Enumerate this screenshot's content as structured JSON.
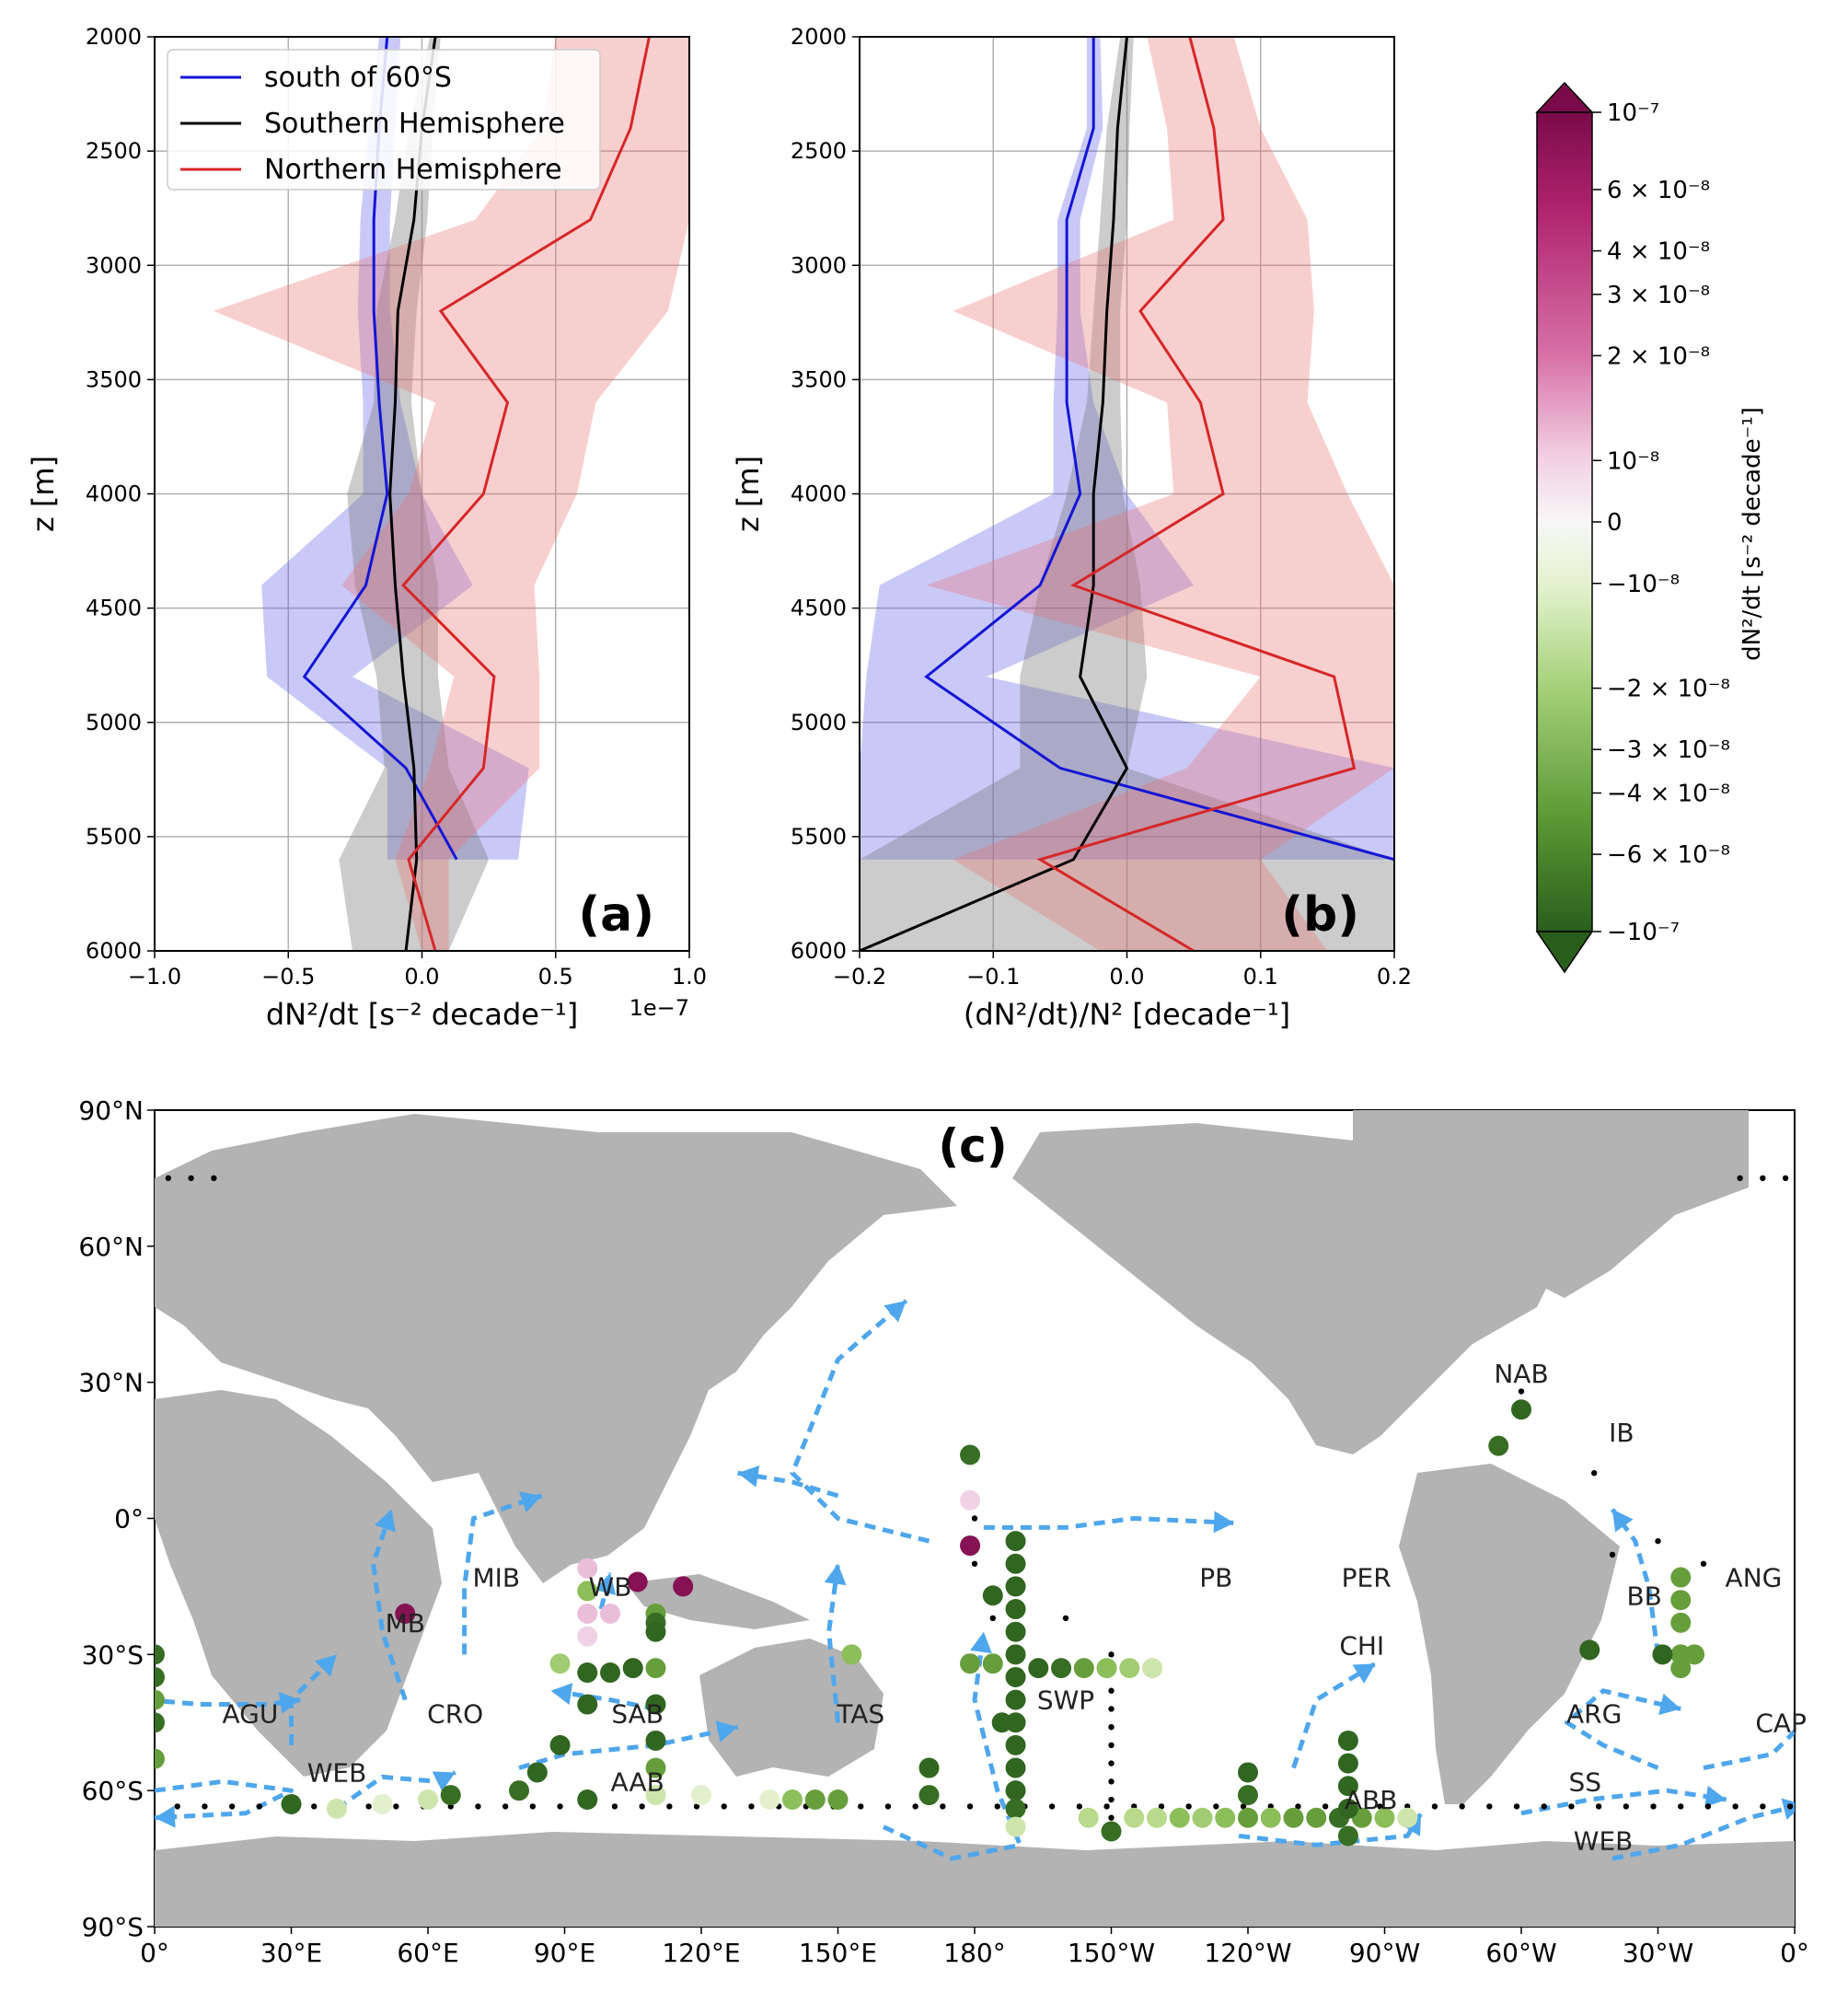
{
  "chart_data": [
    {
      "panel": "(a)",
      "type": "line",
      "orientation": "vertical-profile",
      "xlabel": "dN²/dt [s⁻² decade⁻¹]",
      "xscale_label": "1e−7",
      "ylabel": "z [m]",
      "xlim": [
        -1.0,
        1.0
      ],
      "ylim": [
        2000,
        6000
      ],
      "y_inverted": true,
      "xticks": [
        "−1.0",
        "−0.5",
        "0.0",
        "0.5",
        "1.0"
      ],
      "yticks": [
        "2000",
        "2500",
        "3000",
        "3500",
        "4000",
        "4500",
        "5000",
        "5500",
        "6000"
      ],
      "grid": true,
      "legend_position": "upper-left",
      "series": [
        {
          "name": "south of 60°S",
          "color": "#1515d6",
          "z": [
            2000,
            2400,
            2800,
            3200,
            3600,
            4000,
            4400,
            4800,
            5200,
            5600
          ],
          "values": [
            -0.13,
            -0.16,
            -0.18,
            -0.18,
            -0.16,
            -0.13,
            -0.21,
            -0.44,
            -0.06,
            0.13
          ],
          "lower": [
            -0.16,
            -0.2,
            -0.23,
            -0.24,
            -0.22,
            -0.22,
            -0.6,
            -0.58,
            -0.13,
            -0.13
          ],
          "upper": [
            -0.08,
            -0.1,
            -0.12,
            -0.12,
            -0.08,
            0.0,
            0.19,
            -0.26,
            0.4,
            0.36
          ]
        },
        {
          "name": "Southern Hemisphere",
          "color": "#000000",
          "z": [
            2000,
            2400,
            2800,
            3200,
            3600,
            4000,
            4400,
            4800,
            5200,
            5600,
            6000
          ],
          "values": [
            0.05,
            0.0,
            -0.03,
            -0.09,
            -0.1,
            -0.12,
            -0.1,
            -0.07,
            -0.03,
            -0.02,
            -0.06
          ],
          "lower": [
            0.03,
            -0.05,
            -0.1,
            -0.17,
            -0.18,
            -0.28,
            -0.25,
            -0.17,
            -0.14,
            -0.31,
            -0.26
          ],
          "upper": [
            0.07,
            0.04,
            0.02,
            -0.02,
            -0.04,
            0.0,
            0.06,
            0.06,
            0.1,
            0.25,
            0.1
          ]
        },
        {
          "name": "Northern Hemisphere",
          "color": "#d62728",
          "z": [
            2000,
            2400,
            2800,
            3200,
            3600,
            4000,
            4400,
            4800,
            5200,
            5600,
            6000
          ],
          "values": [
            0.85,
            0.78,
            0.63,
            0.07,
            0.32,
            0.23,
            -0.07,
            0.27,
            0.23,
            -0.05,
            0.05
          ],
          "lower": [
            0.5,
            0.45,
            0.2,
            -0.78,
            0.05,
            -0.05,
            -0.3,
            0.12,
            0.03,
            -0.1,
            0.0
          ],
          "upper": [
            1.0,
            1.0,
            1.0,
            0.92,
            0.65,
            0.58,
            0.42,
            0.44,
            0.44,
            0.1,
            0.1
          ]
        }
      ]
    },
    {
      "panel": "(b)",
      "type": "line",
      "orientation": "vertical-profile",
      "xlabel": "(dN²/dt)/N² [decade⁻¹]",
      "ylabel": "z [m]",
      "xlim": [
        -0.2,
        0.2
      ],
      "ylim": [
        2000,
        6000
      ],
      "y_inverted": true,
      "xticks": [
        "−0.2",
        "−0.1",
        "0.0",
        "0.1",
        "0.2"
      ],
      "yticks": [
        "2000",
        "2500",
        "3000",
        "3500",
        "4000",
        "4500",
        "5000",
        "5500",
        "6000"
      ],
      "grid": true,
      "series": [
        {
          "name": "south of 60°S",
          "color": "#1515d6",
          "z": [
            2000,
            2400,
            2800,
            3200,
            3600,
            4000,
            4400,
            4800,
            5200,
            5600
          ],
          "values": [
            -0.025,
            -0.025,
            -0.045,
            -0.045,
            -0.045,
            -0.035,
            -0.065,
            -0.15,
            -0.05,
            0.2
          ],
          "lower": [
            -0.03,
            -0.03,
            -0.052,
            -0.052,
            -0.055,
            -0.055,
            -0.185,
            -0.195,
            -0.2,
            -0.2
          ],
          "upper": [
            -0.02,
            -0.018,
            -0.035,
            -0.035,
            -0.025,
            0.0,
            0.05,
            -0.105,
            0.2,
            0.2
          ]
        },
        {
          "name": "Southern Hemisphere",
          "color": "#000000",
          "z": [
            2000,
            2400,
            2800,
            3200,
            3600,
            4000,
            4400,
            4800,
            5200,
            5600,
            6000
          ],
          "values": [
            0.0,
            -0.007,
            -0.01,
            -0.015,
            -0.018,
            -0.025,
            -0.025,
            -0.035,
            0.0,
            -0.04,
            -0.2
          ],
          "lower": [
            -0.005,
            -0.015,
            -0.02,
            -0.025,
            -0.03,
            -0.045,
            -0.065,
            -0.08,
            -0.08,
            -0.2,
            -0.2
          ],
          "upper": [
            0.005,
            0.002,
            0.0,
            -0.005,
            -0.005,
            -0.003,
            0.01,
            0.015,
            0.0,
            0.2,
            0.2
          ]
        },
        {
          "name": "Northern Hemisphere",
          "color": "#d62728",
          "z": [
            2000,
            2400,
            2800,
            3200,
            3600,
            4000,
            4400,
            4800,
            5200,
            5600,
            6000
          ],
          "values": [
            0.047,
            0.065,
            0.072,
            0.01,
            0.055,
            0.072,
            -0.04,
            0.155,
            0.17,
            -0.065,
            0.05
          ],
          "lower": [
            0.015,
            0.03,
            0.035,
            -0.13,
            0.03,
            0.035,
            -0.15,
            0.1,
            0.045,
            -0.13,
            -0.02
          ],
          "upper": [
            0.08,
            0.1,
            0.135,
            0.14,
            0.135,
            0.165,
            0.2,
            0.2,
            0.2,
            0.1,
            0.15
          ]
        }
      ]
    },
    {
      "panel": "(c)",
      "type": "scatter",
      "projection": "map",
      "xlim": [
        0,
        360
      ],
      "ylim": [
        -90,
        90
      ],
      "xticks": [
        "0°",
        "30°E",
        "60°E",
        "90°E",
        "120°E",
        "150°E",
        "180°",
        "150°W",
        "120°W",
        "90°W",
        "60°W",
        "30°W",
        "0°"
      ],
      "yticks": [
        "90°N",
        "60°N",
        "30°N",
        "0°",
        "30°S",
        "60°S",
        "90°S"
      ],
      "basins": [
        {
          "label": "NAB",
          "lon": 300,
          "lat": 32
        },
        {
          "label": "IB",
          "lon": 322,
          "lat": 19
        },
        {
          "label": "ANG",
          "lon": 351,
          "lat": -13
        },
        {
          "label": "BB",
          "lon": 327,
          "lat": -17
        },
        {
          "label": "PB",
          "lon": 233,
          "lat": -13
        },
        {
          "label": "PER",
          "lon": 266,
          "lat": -13
        },
        {
          "label": "CHI",
          "lon": 265,
          "lat": -28
        },
        {
          "label": "MIB",
          "lon": 75,
          "lat": -13
        },
        {
          "label": "WB",
          "lon": 100,
          "lat": -15
        },
        {
          "label": "MB",
          "lon": 55,
          "lat": -23
        },
        {
          "label": "AGU",
          "lon": 21,
          "lat": -43
        },
        {
          "label": "CRO",
          "lon": 66,
          "lat": -43
        },
        {
          "label": "SAB",
          "lon": 106,
          "lat": -43
        },
        {
          "label": "TAS",
          "lon": 155,
          "lat": -43
        },
        {
          "label": "SWP",
          "lon": 200,
          "lat": -40
        },
        {
          "label": "ARG",
          "lon": 316,
          "lat": -43
        },
        {
          "label": "CAP",
          "lon": 357,
          "lat": -45
        },
        {
          "label": "WEB",
          "lon": 40,
          "lat": -56
        },
        {
          "label": "AAB",
          "lon": 106,
          "lat": -58
        },
        {
          "label": "ABB",
          "lon": 267,
          "lat": -62
        },
        {
          "label": "SS",
          "lon": 314,
          "lat": -58
        },
        {
          "label": "WEB",
          "lon": 318,
          "lat": -71
        }
      ],
      "colorbar": {
        "label": "dN²/dt [s⁻² decade⁻¹]",
        "ticks": [
          "10⁻⁷",
          "6 × 10⁻⁸",
          "4 × 10⁻⁸",
          "3 × 10⁻⁸",
          "2 × 10⁻⁸",
          "10⁻⁸",
          "0",
          "−10⁻⁸",
          "−2 × 10⁻⁸",
          "−3 × 10⁻⁸",
          "−4 × 10⁻⁸",
          "−6 × 10⁻⁸",
          "−10⁻⁷"
        ],
        "tick_values": [
          1e-07,
          6e-08,
          4e-08,
          3e-08,
          2e-08,
          1e-08,
          0,
          -1e-08,
          -2e-08,
          -3e-08,
          -4e-08,
          -6e-08,
          -1e-07
        ]
      },
      "points": [
        {
          "lon": 0,
          "lat": -30,
          "v": -6e-08
        },
        {
          "lon": 0,
          "lat": -35,
          "v": -6e-08
        },
        {
          "lon": 0,
          "lat": -40,
          "v": -4e-08
        },
        {
          "lon": 0,
          "lat": -45,
          "v": -6e-08
        },
        {
          "lon": 0,
          "lat": -53,
          "v": -4e-08
        },
        {
          "lon": 30,
          "lat": -63,
          "v": -8e-08
        },
        {
          "lon": 40,
          "lat": -64,
          "v": -1.5e-08
        },
        {
          "lon": 50,
          "lat": -63,
          "v": -1e-08
        },
        {
          "lon": 60,
          "lat": -62,
          "v": -1.5e-08
        },
        {
          "lon": 65,
          "lat": -61,
          "v": -6e-08
        },
        {
          "lon": 55,
          "lat": -21,
          "v": 9e-08
        },
        {
          "lon": 95,
          "lat": -11,
          "v": 1.5e-08
        },
        {
          "lon": 95,
          "lat": -16,
          "v": -3e-08
        },
        {
          "lon": 95,
          "lat": -21,
          "v": 1.5e-08
        },
        {
          "lon": 95,
          "lat": -26,
          "v": 1e-08
        },
        {
          "lon": 100,
          "lat": -21,
          "v": 1.5e-08
        },
        {
          "lon": 106,
          "lat": -14,
          "v": 9e-08
        },
        {
          "lon": 116,
          "lat": -15,
          "v": 9e-08
        },
        {
          "lon": 110,
          "lat": -21,
          "v": -4e-08
        },
        {
          "lon": 110,
          "lat": -23,
          "v": -6e-08
        },
        {
          "lon": 110,
          "lat": -25,
          "v": -8e-08
        },
        {
          "lon": 89,
          "lat": -32,
          "v": -2.5e-08
        },
        {
          "lon": 95,
          "lat": -34,
          "v": -8e-08
        },
        {
          "lon": 100,
          "lat": -34,
          "v": -8e-08
        },
        {
          "lon": 105,
          "lat": -33,
          "v": -8e-08
        },
        {
          "lon": 110,
          "lat": -33,
          "v": -4e-08
        },
        {
          "lon": 95,
          "lat": -41,
          "v": -8e-08
        },
        {
          "lon": 110,
          "lat": -41,
          "v": -8e-08
        },
        {
          "lon": 110,
          "lat": -49,
          "v": -8e-08
        },
        {
          "lon": 110,
          "lat": -55,
          "v": -4e-08
        },
        {
          "lon": 89,
          "lat": -50,
          "v": -8e-08
        },
        {
          "lon": 84,
          "lat": -56,
          "v": -8e-08
        },
        {
          "lon": 80,
          "lat": -60,
          "v": -6e-08
        },
        {
          "lon": 95,
          "lat": -62,
          "v": -8e-08
        },
        {
          "lon": 110,
          "lat": -61,
          "v": -1.5e-08
        },
        {
          "lon": 120,
          "lat": -61,
          "v": -1e-08
        },
        {
          "lon": 135,
          "lat": -62,
          "v": -1e-08
        },
        {
          "lon": 140,
          "lat": -62,
          "v": -3e-08
        },
        {
          "lon": 145,
          "lat": -62,
          "v": -4e-08
        },
        {
          "lon": 150,
          "lat": -62,
          "v": -4e-08
        },
        {
          "lon": 153,
          "lat": -30,
          "v": -3e-08
        },
        {
          "lon": 170,
          "lat": -55,
          "v": -8e-08
        },
        {
          "lon": 170,
          "lat": -61,
          "v": -6e-08
        },
        {
          "lon": 179,
          "lat": 14,
          "v": -6e-08
        },
        {
          "lon": 179,
          "lat": 4,
          "v": 1e-08
        },
        {
          "lon": 179,
          "lat": -6,
          "v": 9e-08
        },
        {
          "lon": 189,
          "lat": -5,
          "v": -8e-08
        },
        {
          "lon": 189,
          "lat": -10,
          "v": -8e-08
        },
        {
          "lon": 189,
          "lat": -15,
          "v": -8e-08
        },
        {
          "lon": 189,
          "lat": -20,
          "v": -8e-08
        },
        {
          "lon": 189,
          "lat": -25,
          "v": -8e-08
        },
        {
          "lon": 189,
          "lat": -30,
          "v": -8e-08
        },
        {
          "lon": 189,
          "lat": -35,
          "v": -8e-08
        },
        {
          "lon": 189,
          "lat": -40,
          "v": -8e-08
        },
        {
          "lon": 189,
          "lat": -45,
          "v": -8e-08
        },
        {
          "lon": 189,
          "lat": -50,
          "v": -8e-08
        },
        {
          "lon": 189,
          "lat": -55,
          "v": -8e-08
        },
        {
          "lon": 189,
          "lat": -60,
          "v": -8e-08
        },
        {
          "lon": 189,
          "lat": -64,
          "v": -6e-08
        },
        {
          "lon": 189,
          "lat": -68,
          "v": -1.5e-08
        },
        {
          "lon": 184,
          "lat": -17,
          "v": -8e-08
        },
        {
          "lon": 186,
          "lat": -45,
          "v": -8e-08
        },
        {
          "lon": 179,
          "lat": -32,
          "v": -4e-08
        },
        {
          "lon": 184,
          "lat": -32,
          "v": -4e-08
        },
        {
          "lon": 194,
          "lat": -33,
          "v": -8e-08
        },
        {
          "lon": 199,
          "lat": -33,
          "v": -6e-08
        },
        {
          "lon": 204,
          "lat": -33,
          "v": -4e-08
        },
        {
          "lon": 209,
          "lat": -33,
          "v": -3e-08
        },
        {
          "lon": 214,
          "lat": -33,
          "v": -2.5e-08
        },
        {
          "lon": 219,
          "lat": -33,
          "v": -1.5e-08
        },
        {
          "lon": 205,
          "lat": -66,
          "v": -2e-08
        },
        {
          "lon": 210,
          "lat": -69,
          "v": -6e-08
        },
        {
          "lon": 215,
          "lat": -66,
          "v": -2e-08
        },
        {
          "lon": 220,
          "lat": -66,
          "v": -2e-08
        },
        {
          "lon": 225,
          "lat": -66,
          "v": -3e-08
        },
        {
          "lon": 230,
          "lat": -66,
          "v": -2.5e-08
        },
        {
          "lon": 235,
          "lat": -66,
          "v": -3e-08
        },
        {
          "lon": 240,
          "lat": -66,
          "v": -4e-08
        },
        {
          "lon": 245,
          "lat": -66,
          "v": -3e-08
        },
        {
          "lon": 250,
          "lat": -66,
          "v": -4e-08
        },
        {
          "lon": 255,
          "lat": -66,
          "v": -4e-08
        },
        {
          "lon": 260,
          "lat": -66,
          "v": -6e-08
        },
        {
          "lon": 265,
          "lat": -66,
          "v": -4e-08
        },
        {
          "lon": 270,
          "lat": -66,
          "v": -3e-08
        },
        {
          "lon": 275,
          "lat": -66,
          "v": -1.5e-08
        },
        {
          "lon": 262,
          "lat": -70,
          "v": -6e-08
        },
        {
          "lon": 240,
          "lat": -56,
          "v": -8e-08
        },
        {
          "lon": 240,
          "lat": -61,
          "v": -6e-08
        },
        {
          "lon": 262,
          "lat": -49,
          "v": -8e-08
        },
        {
          "lon": 262,
          "lat": -54,
          "v": -8e-08
        },
        {
          "lon": 262,
          "lat": -59,
          "v": -8e-08
        },
        {
          "lon": 262,
          "lat": -64,
          "v": -8e-08
        },
        {
          "lon": 300,
          "lat": 24,
          "v": -8e-08
        },
        {
          "lon": 295,
          "lat": 16,
          "v": -6e-08
        },
        {
          "lon": 335,
          "lat": -13,
          "v": -4e-08
        },
        {
          "lon": 335,
          "lat": -18,
          "v": -4e-08
        },
        {
          "lon": 335,
          "lat": -23,
          "v": -4e-08
        },
        {
          "lon": 335,
          "lat": -30,
          "v": -4e-08
        },
        {
          "lon": 335,
          "lat": -33,
          "v": -4e-08
        },
        {
          "lon": 331,
          "lat": -30,
          "v": -8e-08
        },
        {
          "lon": 338,
          "lat": -30,
          "v": -4e-08
        },
        {
          "lon": 315,
          "lat": -29,
          "v": -8e-08
        }
      ]
    }
  ]
}
